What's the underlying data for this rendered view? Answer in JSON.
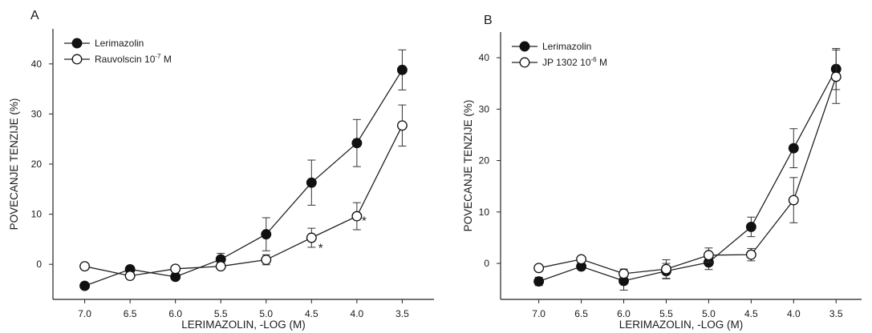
{
  "chart_data": [
    {
      "type": "line",
      "panel_label": "A",
      "xlabel": "LERIMAZOLIN, -LOG (M)",
      "ylabel": "POVECANJE TENZIJE (%)",
      "x_reversed": true,
      "xlim": [
        7.35,
        3.15
      ],
      "ylim": [
        -7,
        47
      ],
      "xticks": [
        7.0,
        6.5,
        6.0,
        5.5,
        5.0,
        4.5,
        4.0,
        3.5
      ],
      "xtick_labels": [
        "7.0",
        "6.5",
        "6.0",
        "5.5",
        "5.0",
        "4.5",
        "4.0",
        "3.5"
      ],
      "yticks": [
        0,
        10,
        20,
        30,
        40
      ],
      "ytick_labels": [
        "0",
        "10",
        "20",
        "30",
        "40"
      ],
      "grid": false,
      "legend_position": "top-left",
      "series": [
        {
          "name": "Lerimazolin",
          "marker": "filled-circle",
          "x": [
            7.0,
            6.5,
            6.0,
            5.5,
            5.0,
            4.5,
            4.0,
            3.5
          ],
          "y": [
            -4.3,
            -1.0,
            -2.5,
            1.0,
            6.0,
            16.3,
            24.2,
            38.8
          ],
          "err": [
            0,
            0,
            0,
            1.2,
            3.3,
            4.5,
            4.7,
            4.0
          ]
        },
        {
          "name_prefix": "Rauvolscin 10",
          "name_sup": "-7",
          "name_suffix": " M",
          "marker": "open-circle",
          "x": [
            7.0,
            6.5,
            6.0,
            5.5,
            5.0,
            4.5,
            4.0,
            3.5
          ],
          "y": [
            -0.4,
            -2.3,
            -0.9,
            -0.4,
            0.9,
            5.3,
            9.6,
            27.7
          ],
          "err": [
            0,
            0,
            0,
            0,
            1.0,
            1.9,
            2.7,
            4.1
          ]
        }
      ],
      "annotations": [
        {
          "text": "*",
          "x": 4.4,
          "y": 2.5
        },
        {
          "text": "*",
          "x": 3.92,
          "y": 7.9
        }
      ]
    },
    {
      "type": "line",
      "panel_label": "B",
      "xlabel": "LERIMAZOLIN, -LOG (M)",
      "ylabel": "POVECANJE TENZIJE (%)",
      "x_reversed": true,
      "xlim": [
        7.45,
        3.2
      ],
      "ylim": [
        -7,
        45
      ],
      "xticks": [
        7.0,
        6.5,
        6.0,
        5.5,
        5.0,
        4.5,
        4.0,
        3.5
      ],
      "xtick_labels": [
        "7.0",
        "6.5",
        "6.0",
        "5.5",
        "5.0",
        "4.5",
        "4.0",
        "3.5"
      ],
      "yticks": [
        0,
        10,
        20,
        30,
        40
      ],
      "ytick_labels": [
        "0",
        "10",
        "20",
        "30",
        "40"
      ],
      "grid": false,
      "legend_position": "top-left",
      "series": [
        {
          "name": "Lerimazolin",
          "marker": "filled-circle",
          "x": [
            7.0,
            6.5,
            6.0,
            5.5,
            5.0,
            4.5,
            4.0,
            3.5
          ],
          "y": [
            -3.5,
            -0.6,
            -3.4,
            -1.5,
            0.2,
            7.1,
            22.4,
            37.8
          ],
          "err": [
            0.8,
            0.4,
            1.8,
            1.5,
            1.4,
            1.9,
            3.8,
            4.0
          ]
        },
        {
          "name_prefix": "JP 1302 10",
          "name_sup": "-6",
          "name_suffix": " M",
          "marker": "open-circle",
          "x": [
            7.0,
            6.5,
            6.0,
            5.5,
            5.0,
            4.5,
            4.0,
            3.5
          ],
          "y": [
            -0.9,
            0.8,
            -2.0,
            -1.1,
            1.6,
            1.7,
            12.3,
            36.3
          ],
          "err": [
            0.3,
            0.4,
            0.9,
            1.8,
            1.4,
            1.2,
            4.4,
            5.2
          ]
        }
      ],
      "annotations": []
    }
  ]
}
